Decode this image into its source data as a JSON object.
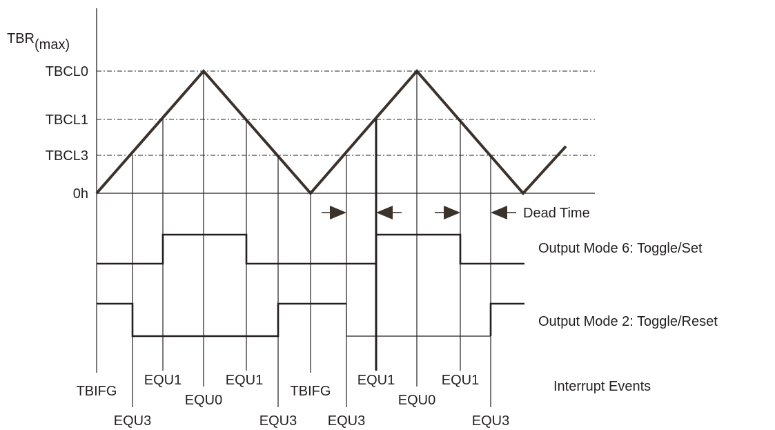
{
  "diagram": {
    "y_axis": {
      "max_label": "TBR",
      "max_sub": "(max)",
      "levels": [
        "TBCL0",
        "TBCL1",
        "TBCL3",
        "0h"
      ]
    },
    "dead_time_label": "Dead Time",
    "output_mode_6": "Output Mode 6: Toggle/Set",
    "output_mode_2": "Output Mode 2: Toggle/Reset",
    "interrupt_events_label": "Interrupt Events",
    "events": {
      "tbifg": "TBIFG",
      "equ1": "EQU1",
      "equ0": "EQU0",
      "equ3": "EQU3"
    }
  }
}
